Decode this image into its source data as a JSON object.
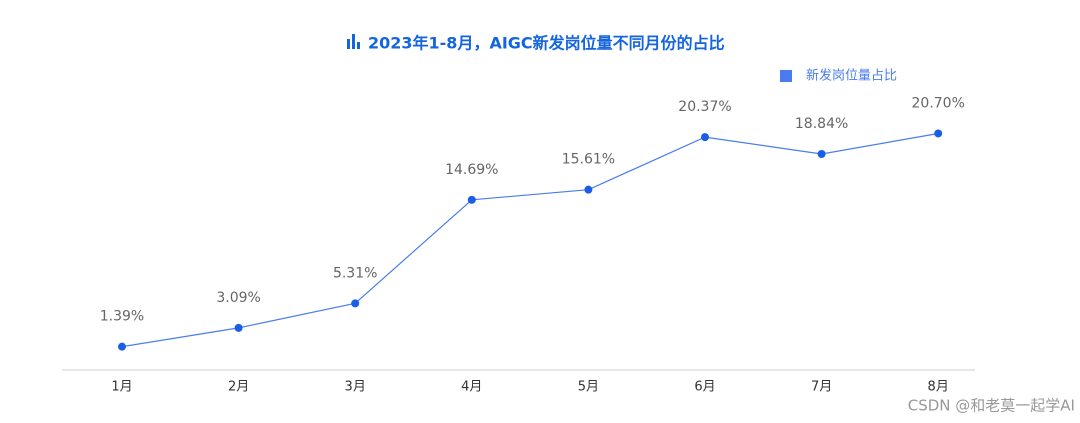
{
  "chart_data": {
    "type": "line",
    "title": "2023年1-8月，AIGC新发岗位量不同月份的占比",
    "categories": [
      "1月",
      "2月",
      "3月",
      "4月",
      "5月",
      "6月",
      "7月",
      "8月"
    ],
    "series": [
      {
        "name": "新发岗位量占比",
        "color": "#4a7cf0",
        "point_color": "#1a5ee8",
        "values": [
          1.39,
          3.09,
          5.31,
          14.69,
          15.61,
          20.37,
          18.84,
          20.7
        ],
        "value_labels": [
          "1.39%",
          "3.09%",
          "5.31%",
          "14.69%",
          "15.61%",
          "20.37%",
          "18.84%",
          "20.70%"
        ]
      }
    ],
    "ylim": [
      0,
      25
    ],
    "legend": "top-right",
    "watermark": "CSDN @和老莫一起学AI"
  }
}
